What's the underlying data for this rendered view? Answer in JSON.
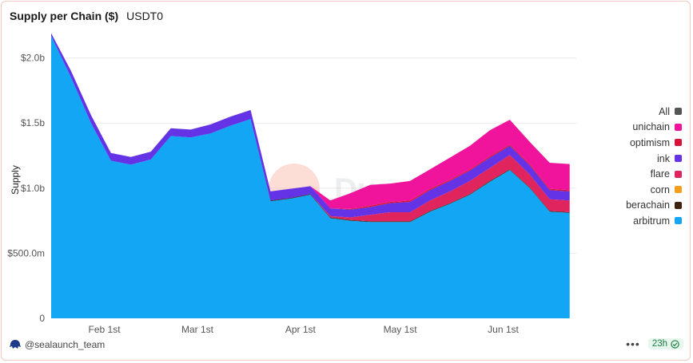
{
  "header": {
    "title": "Supply per Chain ($)",
    "subtitle": "USDT0"
  },
  "watermark": {
    "text": "Dune"
  },
  "footer": {
    "author": "@sealaunch_team",
    "more": "•••",
    "freshness": "23h"
  },
  "icons": {
    "author": "sealaunch-logo-icon",
    "freshness": "check-circle-icon",
    "more": "more-dots-icon"
  },
  "chart_data": {
    "type": "area",
    "stacked": true,
    "ylabel": "Supply",
    "ylim": [
      0,
      2200000000
    ],
    "y_ticks": [
      {
        "value": 0,
        "label": "0"
      },
      {
        "value": 500000000,
        "label": "$500.0m"
      },
      {
        "value": 1000000000,
        "label": "$1.0b"
      },
      {
        "value": 1500000000,
        "label": "$1.5b"
      },
      {
        "value": 2000000000,
        "label": "$2.0b"
      }
    ],
    "xlim": [
      "2025-01-16",
      "2025-06-23"
    ],
    "x_ticks": [
      {
        "value": "2025-02-01",
        "label": "Feb 1st"
      },
      {
        "value": "2025-03-01",
        "label": "Mar 1st"
      },
      {
        "value": "2025-04-01",
        "label": "Apr 1st"
      },
      {
        "value": "2025-05-01",
        "label": "May 1st"
      },
      {
        "value": "2025-06-01",
        "label": "Jun 1st"
      }
    ],
    "grid": true,
    "legend_position": "right",
    "x": [
      "2025-01-16",
      "2025-01-22",
      "2025-01-28",
      "2025-02-03",
      "2025-02-09",
      "2025-02-15",
      "2025-02-21",
      "2025-02-27",
      "2025-03-05",
      "2025-03-11",
      "2025-03-17",
      "2025-03-23",
      "2025-03-29",
      "2025-04-04",
      "2025-04-10",
      "2025-04-16",
      "2025-04-22",
      "2025-04-28",
      "2025-05-04",
      "2025-05-10",
      "2025-05-16",
      "2025-05-22",
      "2025-05-28",
      "2025-06-03",
      "2025-06-09",
      "2025-06-15",
      "2025-06-21"
    ],
    "series": [
      {
        "name": "arbitrum",
        "color": "#12a6f5",
        "values": [
          2170000000,
          1850000000,
          1500000000,
          1210000000,
          1180000000,
          1220000000,
          1400000000,
          1390000000,
          1420000000,
          1480000000,
          1530000000,
          900000000,
          920000000,
          950000000,
          770000000,
          750000000,
          740000000,
          740000000,
          740000000,
          820000000,
          880000000,
          950000000,
          1050000000,
          1140000000,
          1000000000,
          820000000,
          810000000
        ]
      },
      {
        "name": "berachain",
        "color": "#3d2410",
        "values": [
          0,
          0,
          0,
          0,
          0,
          0,
          0,
          0,
          0,
          0,
          0,
          5000000,
          5000000,
          5000000,
          5000000,
          5000000,
          5000000,
          5000000,
          5000000,
          5000000,
          5000000,
          5000000,
          5000000,
          5000000,
          5000000,
          5000000,
          5000000
        ]
      },
      {
        "name": "corn",
        "color": "#f59e1b",
        "values": [
          0,
          0,
          0,
          0,
          0,
          0,
          0,
          0,
          0,
          0,
          0,
          0,
          0,
          0,
          0,
          0,
          0,
          0,
          0,
          0,
          0,
          0,
          0,
          0,
          0,
          0,
          0
        ]
      },
      {
        "name": "flare",
        "color": "#e0245e",
        "values": [
          0,
          0,
          0,
          0,
          0,
          0,
          0,
          0,
          0,
          0,
          0,
          0,
          0,
          0,
          10000000,
          20000000,
          50000000,
          70000000,
          70000000,
          80000000,
          90000000,
          100000000,
          100000000,
          110000000,
          100000000,
          90000000,
          90000000
        ]
      },
      {
        "name": "ink",
        "color": "#6533e6",
        "values": [
          20000000,
          50000000,
          60000000,
          60000000,
          60000000,
          60000000,
          60000000,
          60000000,
          70000000,
          70000000,
          70000000,
          70000000,
          70000000,
          60000000,
          60000000,
          60000000,
          60000000,
          70000000,
          80000000,
          80000000,
          80000000,
          80000000,
          80000000,
          70000000,
          70000000,
          70000000,
          70000000
        ]
      },
      {
        "name": "optimism",
        "color": "#d9143a",
        "values": [
          0,
          0,
          0,
          0,
          0,
          0,
          0,
          0,
          0,
          0,
          0,
          0,
          0,
          0,
          0,
          5000000,
          10000000,
          10000000,
          10000000,
          10000000,
          10000000,
          10000000,
          10000000,
          10000000,
          10000000,
          10000000,
          10000000
        ]
      },
      {
        "name": "unichain",
        "color": "#f0149c",
        "values": [
          0,
          0,
          0,
          0,
          0,
          0,
          0,
          0,
          0,
          0,
          0,
          0,
          0,
          0,
          60000000,
          120000000,
          160000000,
          140000000,
          150000000,
          150000000,
          170000000,
          180000000,
          200000000,
          190000000,
          170000000,
          200000000,
          200000000
        ]
      }
    ],
    "legend": [
      {
        "name": "All",
        "color": "#555555"
      },
      {
        "name": "unichain",
        "color": "#f0149c"
      },
      {
        "name": "optimism",
        "color": "#d9143a"
      },
      {
        "name": "ink",
        "color": "#6533e6"
      },
      {
        "name": "flare",
        "color": "#e0245e"
      },
      {
        "name": "corn",
        "color": "#f59e1b"
      },
      {
        "name": "berachain",
        "color": "#3d2410"
      },
      {
        "name": "arbitrum",
        "color": "#12a6f5"
      }
    ]
  }
}
